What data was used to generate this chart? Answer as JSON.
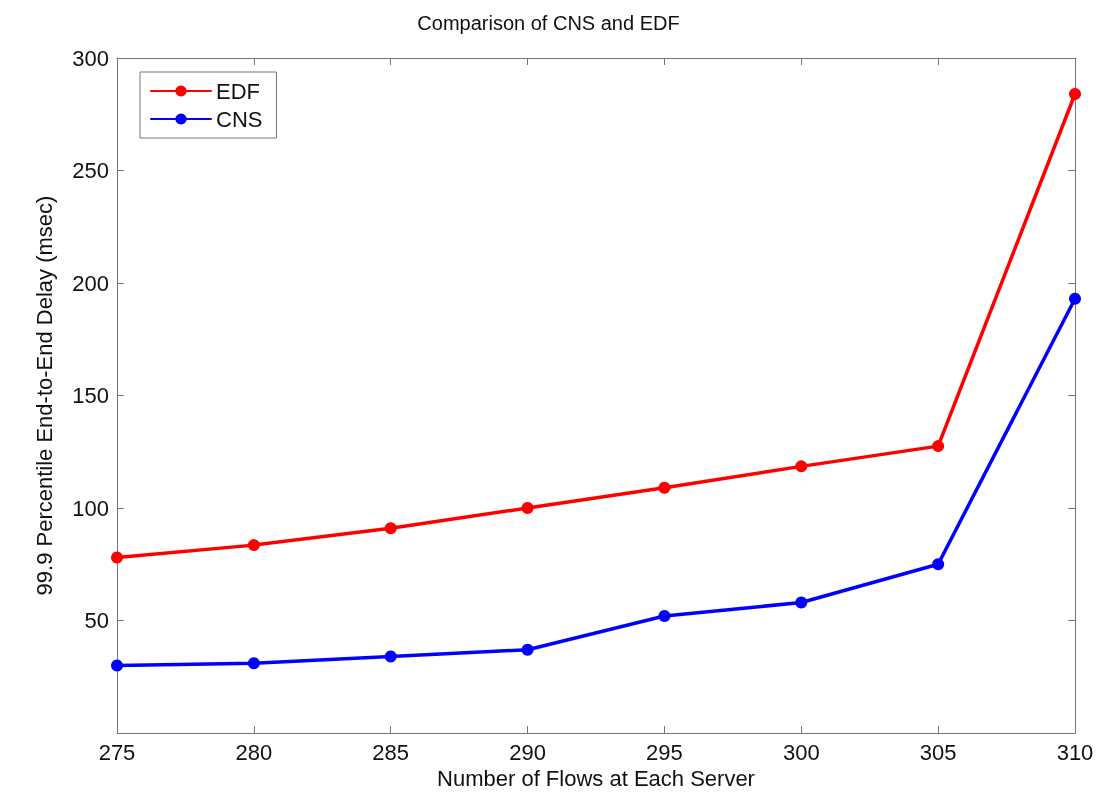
{
  "chart_data": {
    "type": "line",
    "title": "Comparison of CNS and EDF",
    "xlabel": "Number of Flows at Each Server",
    "ylabel": "99.9 Percentile End-to-End Delay (msec)",
    "x": [
      275,
      280,
      285,
      290,
      295,
      300,
      305,
      310
    ],
    "series": [
      {
        "name": "EDF",
        "color": "#ff0000",
        "values": [
          78,
          83.5,
          91,
          100,
          109,
          118.5,
          127.5,
          284
        ]
      },
      {
        "name": "CNS",
        "color": "#0000ff",
        "values": [
          30,
          31,
          34,
          37,
          52,
          58,
          75,
          193
        ]
      }
    ],
    "xlim": [
      275,
      310
    ],
    "xticks": [
      275,
      280,
      285,
      290,
      295,
      300,
      305,
      310
    ],
    "ylim": [
      0,
      300
    ],
    "yticks": [
      {
        "value": 0,
        "label": null
      },
      50,
      100,
      150,
      200,
      250,
      300
    ],
    "grid": false,
    "legend": "top left",
    "marker": "circle",
    "line_style": "solid"
  }
}
